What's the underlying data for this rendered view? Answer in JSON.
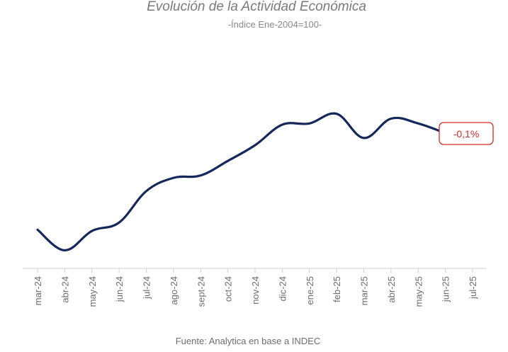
{
  "chart_data": {
    "type": "line",
    "title": "Evolución de la Actividad Económica",
    "subtitle": "-Índice Ene-2004=100-",
    "source": "Fuente: Analytica en base a INDEC",
    "categories": [
      "mar-24",
      "abr-24",
      "may-24",
      "jun-24",
      "jul-24",
      "ago-24",
      "sept-24",
      "oct-24",
      "nov-24",
      "dic-24",
      "ene-25",
      "feb-25",
      "mar-25",
      "abr-25",
      "may-25",
      "jun-25",
      "jul-25"
    ],
    "series": [
      {
        "name": "Actividad Económica",
        "values": [
          143.7,
          142.0,
          143.6,
          144.3,
          146.9,
          148.0,
          148.2,
          149.4,
          150.7,
          152.4,
          152.5,
          153.3,
          151.3,
          152.9,
          152.5,
          151.7,
          151.6
        ]
      }
    ],
    "last_change": {
      "label": "-0,1%",
      "from_category": "jun-25",
      "to_category": "jul-25"
    },
    "ylim": [
      140.5,
      158.5
    ],
    "xlabel": "",
    "ylabel": "",
    "grid": false,
    "colors": {
      "line": "#16285b",
      "highlight": "#e8524a",
      "callout": "#d62b2b"
    }
  }
}
